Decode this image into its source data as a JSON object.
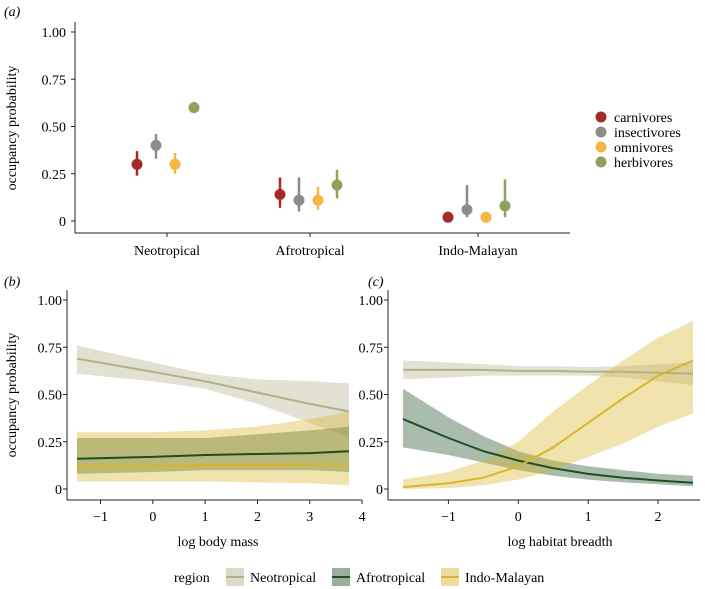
{
  "figure": {
    "panel_labels": [
      "(a)",
      "(b)",
      "(c)"
    ],
    "colors": {
      "carnivores": "#a52a2a",
      "insectivores": "#8c8c8c",
      "omnivores": "#f5b642",
      "herbivores": "#8fa25a",
      "Neotropical": "#b2b089",
      "Afrotropical": "#1f4e24",
      "Indo-Malayan": "#d8b52a"
    }
  },
  "chart_data": [
    {
      "panel": "(a)",
      "type": "scatter",
      "title": "",
      "xlabel": "",
      "ylabel": "occupancy probability",
      "ylim": [
        0,
        1
      ],
      "yticks": [
        0,
        0.25,
        0.5,
        0.75,
        1
      ],
      "ytick_labels": [
        "0",
        "0.25",
        "0.50",
        "0.75",
        "1.00"
      ],
      "categories": [
        "Neotropical",
        "Afrotropical",
        "Indo-Malayan"
      ],
      "legend_position": "right",
      "series": [
        {
          "name": "carnivores",
          "values": [
            0.3,
            0.14,
            0.02
          ],
          "lower": [
            0.24,
            0.07,
            0.005
          ],
          "upper": [
            0.37,
            0.23,
            0.05
          ]
        },
        {
          "name": "insectivores",
          "values": [
            0.4,
            0.11,
            0.06
          ],
          "lower": [
            0.33,
            0.05,
            0.02
          ],
          "upper": [
            0.46,
            0.23,
            0.19
          ]
        },
        {
          "name": "omnivores",
          "values": [
            0.3,
            0.11,
            0.02
          ],
          "lower": [
            0.25,
            0.06,
            0.005
          ],
          "upper": [
            0.36,
            0.18,
            0.04
          ]
        },
        {
          "name": "herbivores",
          "values": [
            0.6,
            0.19,
            0.08
          ],
          "lower": [
            0.58,
            0.12,
            0.02
          ],
          "upper": [
            0.63,
            0.27,
            0.22
          ]
        }
      ]
    },
    {
      "panel": "(b)",
      "type": "line",
      "title": "",
      "xlabel": "log body mass",
      "ylabel": "occupancy probability",
      "xlim": [
        -1.45,
        3.75
      ],
      "ylim": [
        0,
        1
      ],
      "xticks": [
        -1,
        0,
        1,
        2,
        3,
        4
      ],
      "xtick_labels": [
        "−1",
        "0",
        "1",
        "2",
        "3",
        "4"
      ],
      "yticks": [
        0,
        0.25,
        0.5,
        0.75,
        1
      ],
      "ytick_labels": [
        "0",
        "0.25",
        "0.50",
        "0.75",
        "1.00"
      ],
      "x": [
        -1.45,
        0,
        1,
        2,
        3,
        3.75
      ],
      "series": [
        {
          "name": "Neotropical",
          "values": [
            0.69,
            0.62,
            0.57,
            0.51,
            0.45,
            0.41
          ],
          "lower": [
            0.61,
            0.57,
            0.53,
            0.45,
            0.35,
            0.27
          ],
          "upper": [
            0.76,
            0.67,
            0.61,
            0.58,
            0.57,
            0.56
          ]
        },
        {
          "name": "Afrotropical",
          "values": [
            0.16,
            0.17,
            0.18,
            0.185,
            0.19,
            0.2
          ],
          "lower": [
            0.08,
            0.09,
            0.1,
            0.1,
            0.1,
            0.09
          ],
          "upper": [
            0.27,
            0.27,
            0.27,
            0.29,
            0.31,
            0.33
          ]
        },
        {
          "name": "Indo-Malayan",
          "values": [
            0.12,
            0.12,
            0.125,
            0.125,
            0.13,
            0.13
          ],
          "lower": [
            0.04,
            0.04,
            0.04,
            0.035,
            0.03,
            0.02
          ],
          "upper": [
            0.3,
            0.3,
            0.31,
            0.33,
            0.37,
            0.41
          ]
        }
      ]
    },
    {
      "panel": "(c)",
      "type": "line",
      "title": "",
      "xlabel": "log habitat breadth",
      "ylabel": "",
      "xlim": [
        -1.65,
        2.5
      ],
      "ylim": [
        0,
        1
      ],
      "xticks": [
        -1,
        0,
        1,
        2
      ],
      "xtick_labels": [
        "−1",
        "0",
        "1",
        "2"
      ],
      "yticks": [
        0,
        0.25,
        0.5,
        0.75,
        1
      ],
      "ytick_labels": [
        "0",
        "0.25",
        "0.50",
        "0.75",
        "1.00"
      ],
      "x": [
        -1.65,
        -1,
        -0.5,
        0,
        0.5,
        1,
        1.5,
        2,
        2.5
      ],
      "series": [
        {
          "name": "Neotropical",
          "values": [
            0.63,
            0.63,
            0.63,
            0.625,
            0.625,
            0.62,
            0.62,
            0.615,
            0.61
          ],
          "lower": [
            0.58,
            0.59,
            0.6,
            0.6,
            0.6,
            0.6,
            0.59,
            0.57,
            0.55
          ],
          "upper": [
            0.68,
            0.67,
            0.66,
            0.65,
            0.65,
            0.645,
            0.65,
            0.66,
            0.67
          ]
        },
        {
          "name": "Afrotropical",
          "values": [
            0.37,
            0.27,
            0.2,
            0.15,
            0.11,
            0.08,
            0.06,
            0.045,
            0.033
          ],
          "lower": [
            0.22,
            0.18,
            0.14,
            0.1,
            0.07,
            0.05,
            0.035,
            0.025,
            0.015
          ],
          "upper": [
            0.53,
            0.38,
            0.28,
            0.2,
            0.15,
            0.12,
            0.1,
            0.08,
            0.07
          ]
        },
        {
          "name": "Indo-Malayan",
          "values": [
            0.01,
            0.03,
            0.06,
            0.12,
            0.22,
            0.35,
            0.48,
            0.6,
            0.68
          ],
          "lower": [
            0.0,
            0.005,
            0.02,
            0.05,
            0.1,
            0.17,
            0.24,
            0.33,
            0.4
          ],
          "upper": [
            0.05,
            0.09,
            0.15,
            0.25,
            0.41,
            0.55,
            0.68,
            0.8,
            0.89
          ]
        }
      ]
    }
  ],
  "legend_a": [
    "carnivores",
    "insectivores",
    "omnivores",
    "herbivores"
  ],
  "legend_bottom": {
    "title": "region",
    "items": [
      "Neotropical",
      "Afrotropical",
      "Indo-Malayan"
    ]
  }
}
